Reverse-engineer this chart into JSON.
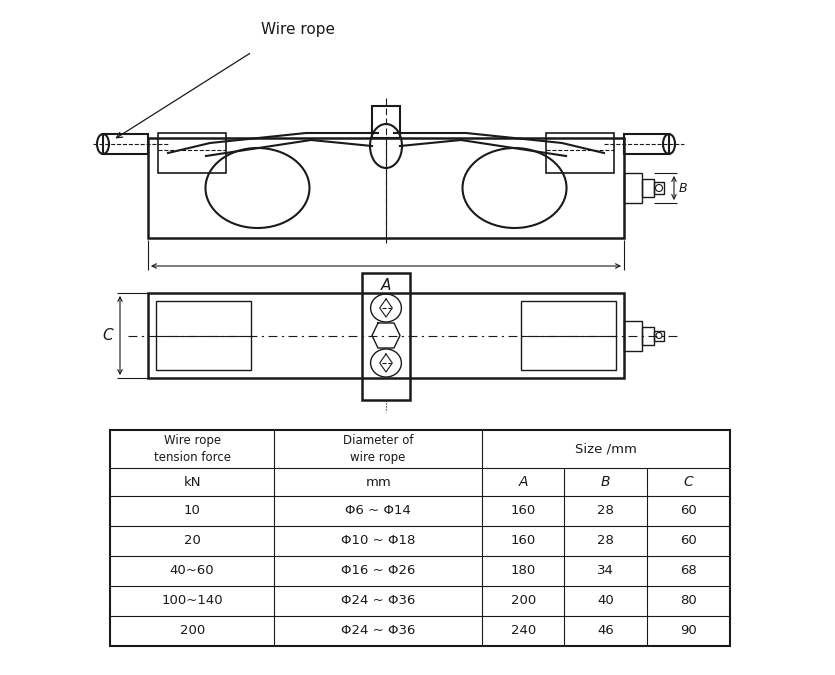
{
  "bg_color": "#ffffff",
  "line_color": "#1a1a1a",
  "wire_rope_label": "Wire rope",
  "table_rows": [
    [
      "Wire rope\ntension force",
      "Diameter of\nwire rope",
      "Size /mm",
      "",
      ""
    ],
    [
      "kN",
      "mm",
      "A",
      "B",
      "C"
    ],
    [
      "10",
      "Φ6 ~ Φ14",
      "160",
      "28",
      "60"
    ],
    [
      "20",
      "Φ10 ~ Φ18",
      "160",
      "28",
      "60"
    ],
    [
      "40~60",
      "Φ16 ~ Φ26",
      "180",
      "34",
      "68"
    ],
    [
      "100~140",
      "Φ24 ~ Φ36",
      "200",
      "40",
      "80"
    ],
    [
      "200",
      "Φ24 ~ Φ36",
      "240",
      "46",
      "90"
    ]
  ]
}
